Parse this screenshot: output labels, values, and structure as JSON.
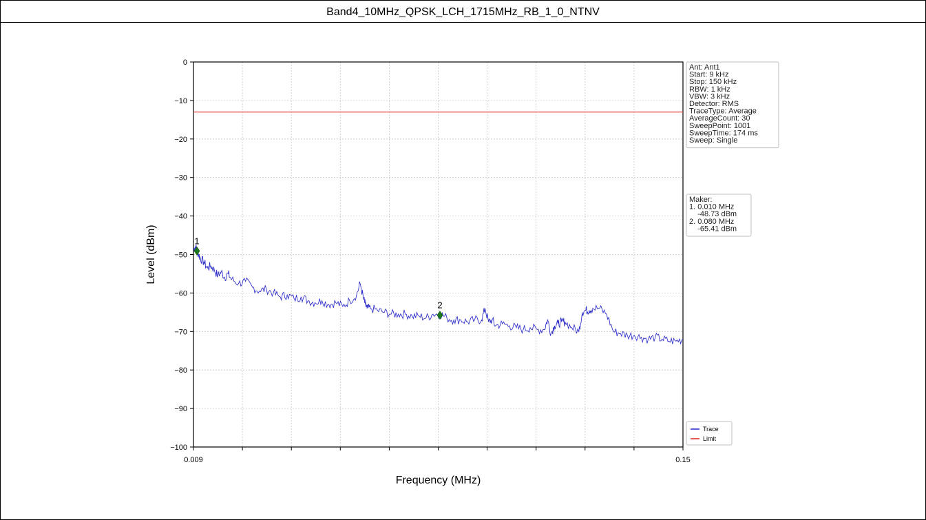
{
  "title": "Band4_10MHz_QPSK_LCH_1715MHz_RB_1_0_NTNV",
  "chart_data": {
    "type": "line",
    "xlabel": "Frequency (MHz)",
    "ylabel": "Level (dBm)",
    "xlim": [
      0.009,
      0.15
    ],
    "ylim": [
      -100,
      0
    ],
    "x_tick_labels": [
      "0.009",
      "0.15"
    ],
    "y_ticks": [
      0,
      -10,
      -20,
      -30,
      -40,
      -50,
      -60,
      -70,
      -80,
      -90,
      -100
    ],
    "y_tick_labels": [
      "0",
      "−10",
      "−20",
      "−30",
      "−40",
      "−50",
      "−60",
      "−70",
      "−80",
      "−90",
      "−100"
    ],
    "grid": true,
    "legend_position": "bottom-right",
    "series": [
      {
        "name": "Trace",
        "color": "#3333cc",
        "x": [
          0.009,
          0.0095,
          0.01,
          0.0105,
          0.011,
          0.012,
          0.013,
          0.014,
          0.015,
          0.016,
          0.017,
          0.018,
          0.019,
          0.02,
          0.022,
          0.024,
          0.026,
          0.028,
          0.03,
          0.032,
          0.034,
          0.036,
          0.038,
          0.04,
          0.042,
          0.044,
          0.046,
          0.048,
          0.05,
          0.052,
          0.054,
          0.056,
          0.057,
          0.058,
          0.0585,
          0.059,
          0.06,
          0.062,
          0.064,
          0.066,
          0.068,
          0.07,
          0.072,
          0.074,
          0.076,
          0.078,
          0.08,
          0.082,
          0.084,
          0.086,
          0.088,
          0.09,
          0.092,
          0.093,
          0.094,
          0.095,
          0.096,
          0.098,
          0.1,
          0.102,
          0.104,
          0.106,
          0.108,
          0.11,
          0.111,
          0.112,
          0.113,
          0.114,
          0.115,
          0.116,
          0.118,
          0.12,
          0.121,
          0.122,
          0.123,
          0.124,
          0.126,
          0.128,
          0.13,
          0.132,
          0.134,
          0.136,
          0.138,
          0.14,
          0.142,
          0.144,
          0.146,
          0.148,
          0.15
        ],
        "values": [
          -48.7,
          -48.0,
          -48.7,
          -50.0,
          -51.0,
          -52.0,
          -53.5,
          -53.0,
          -54.0,
          -55.5,
          -54.5,
          -56.0,
          -55.0,
          -56.5,
          -57.5,
          -57.0,
          -58.5,
          -59.5,
          -59.0,
          -60.0,
          -61.0,
          -60.5,
          -61.5,
          -61.0,
          -62.0,
          -62.5,
          -62.0,
          -63.0,
          -62.5,
          -63.5,
          -62.0,
          -60.5,
          -57.5,
          -61.5,
          -63.0,
          -64.0,
          -64.0,
          -64.5,
          -65.0,
          -65.5,
          -65.5,
          -65.5,
          -66.0,
          -66.0,
          -66.5,
          -65.5,
          -65.4,
          -66.5,
          -67.0,
          -67.0,
          -67.5,
          -67.0,
          -67.0,
          -64.0,
          -67.5,
          -67.0,
          -68.5,
          -68.0,
          -68.5,
          -69.0,
          -69.5,
          -69.0,
          -69.5,
          -69.5,
          -67.0,
          -70.5,
          -68.5,
          -68.0,
          -67.5,
          -67.5,
          -69.0,
          -70.0,
          -65.0,
          -64.5,
          -64.5,
          -64.0,
          -64.0,
          -65.5,
          -70.0,
          -70.5,
          -71.0,
          -71.0,
          -71.5,
          -72.0,
          -71.5,
          -72.0,
          -72.5,
          -72.5,
          -72.0
        ]
      },
      {
        "name": "Limit",
        "color": "#e03030",
        "x": [
          0.009,
          0.15
        ],
        "values": [
          -13.0,
          -13.0
        ]
      }
    ],
    "markers": [
      {
        "label": "1",
        "x": 0.01,
        "y": -48.73
      },
      {
        "label": "2",
        "x": 0.08,
        "y": -65.41
      }
    ],
    "settings_box": [
      "Ant: Ant1",
      "Start: 9 kHz",
      "Stop: 150 kHz",
      "RBW: 1 kHz",
      "VBW: 3 kHz",
      "Detector: RMS",
      "TraceType: Average",
      "AverageCount: 30",
      "SweepPoint: 1001",
      "SweepTime: 174 ms",
      "Sweep: Single"
    ],
    "marker_box": [
      "Maker:",
      "1. 0.010 MHz",
      "    -48.73 dBm",
      "2. 0.080 MHz",
      "    -65.41 dBm"
    ],
    "legend": [
      "Trace",
      "Limit"
    ]
  }
}
